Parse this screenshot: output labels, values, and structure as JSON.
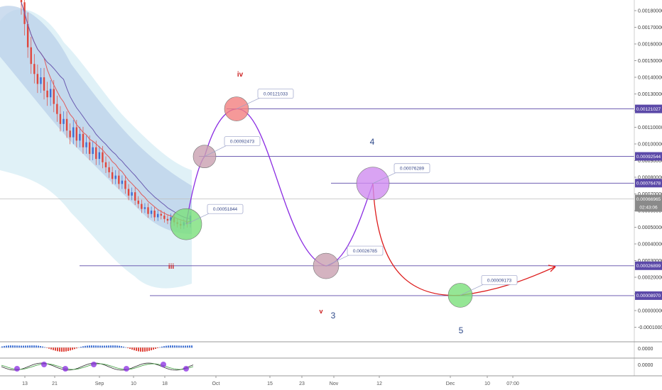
{
  "chart_data": {
    "type": "line",
    "y_axis": {
      "min": -0.00015,
      "max": 0.0019,
      "ticks": [
        "0.00180000",
        "0.00170000",
        "0.00160000",
        "0.00150000",
        "0.00140000",
        "0.00130000",
        "0.00120000",
        "0.00110000",
        "0.00100000",
        "0.00090000",
        "0.00080000",
        "0.00070000",
        "0.00060000",
        "0.00050000",
        "0.00040000",
        "0.00030000",
        "0.00020000",
        "0.00010000",
        "0.00000000",
        "-0.00010000"
      ]
    },
    "x_axis": {
      "ticks": [
        "13",
        "21",
        "Sep",
        "10",
        "18",
        "Oct",
        "15",
        "23",
        "Nov",
        "12",
        "Dec",
        "10",
        "07:00"
      ]
    },
    "price_tags": [
      {
        "value": 0.00121027,
        "label": "0.00121027",
        "color": "#5b49a8"
      },
      {
        "value": 0.00092544,
        "label": "0.00092544",
        "color": "#5b49a8"
      },
      {
        "value": 0.00076478,
        "label": "0.00076478",
        "color": "#5b49a8"
      },
      {
        "value": 0.00066965,
        "label": "0.00066965",
        "color": "#8a8a8a"
      },
      {
        "value": 0.00062,
        "label": "02:43:06",
        "color": "#8a8a8a"
      },
      {
        "value": 0.00026899,
        "label": "0.00026899",
        "color": "#5b49a8"
      },
      {
        "value": 8.97e-05,
        "label": "0.00008970",
        "color": "#5b49a8"
      }
    ],
    "horizontal_levels": [
      0.00121027,
      0.00092544,
      0.00076478,
      0.00026899,
      8.97e-05
    ],
    "current_price_line": 0.00066965,
    "wave_points": [
      {
        "value": 0.00051844,
        "label": "0.00051844",
        "color": "#7be07b"
      },
      {
        "value": 0.00092473,
        "label": "0.00092473",
        "color": "#c9a0b0"
      },
      {
        "value": 0.00121033,
        "label": "0.00121033",
        "color": "#f28080"
      },
      {
        "value": 0.00026785,
        "label": "0.00026785",
        "color": "#c9a0b0"
      },
      {
        "value": 0.00076289,
        "label": "0.00076289",
        "color": "#d08cf0"
      },
      {
        "value": 9.173e-05,
        "label": "0.00009173",
        "color": "#7be07b"
      }
    ],
    "wave_labels": [
      {
        "text": "iii",
        "color": "#cc2222"
      },
      {
        "text": "iv",
        "color": "#cc2222"
      },
      {
        "text": "v",
        "color": "#cc2222"
      },
      {
        "text": "3",
        "color": "#2f4a8a"
      },
      {
        "text": "4",
        "color": "#2f4a8a"
      },
      {
        "text": "5",
        "color": "#2f4a8a"
      }
    ],
    "candles_close": [
      0.00185,
      0.00172,
      0.00158,
      0.00148,
      0.00142,
      0.00136,
      0.0014,
      0.00132,
      0.00128,
      0.00133,
      0.00124,
      0.00118,
      0.00112,
      0.00115,
      0.00108,
      0.00104,
      0.0011,
      0.00102,
      0.00106,
      0.00098,
      0.00101,
      0.00094,
      0.00098,
      0.00091,
      0.00095,
      0.00089,
      0.00086,
      0.00083,
      0.00079,
      0.00081,
      0.00076,
      0.00078,
      0.00073,
      0.00069,
      0.00071,
      0.00066,
      0.00064,
      0.00061,
      0.00062,
      0.00058,
      0.0006,
      0.00056,
      0.00058,
      0.00057,
      0.00055,
      0.00054,
      0.00056,
      0.00053,
      0.00052,
      0.00051,
      0.00053,
      0.00052,
      0.00057
    ],
    "indicator_tick_1": "0.0000",
    "indicator_tick_2": "0.0000",
    "grid": false
  }
}
